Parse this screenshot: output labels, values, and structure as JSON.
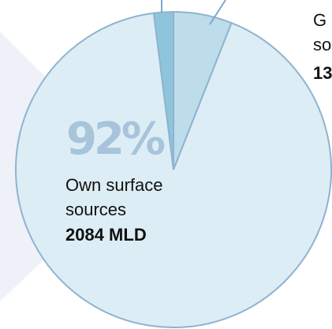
{
  "chart_data": {
    "type": "pie",
    "categories": [
      "G\nso",
      "Own surface\nsources",
      null
    ],
    "values": [
      6,
      92,
      2
    ],
    "value_labels": [
      null,
      "92%",
      null
    ],
    "amounts": [
      "13",
      "2084 MLD",
      null
    ],
    "colors": [
      "#bcdde9",
      "#ddedf5",
      "#8fc5da"
    ]
  }
}
